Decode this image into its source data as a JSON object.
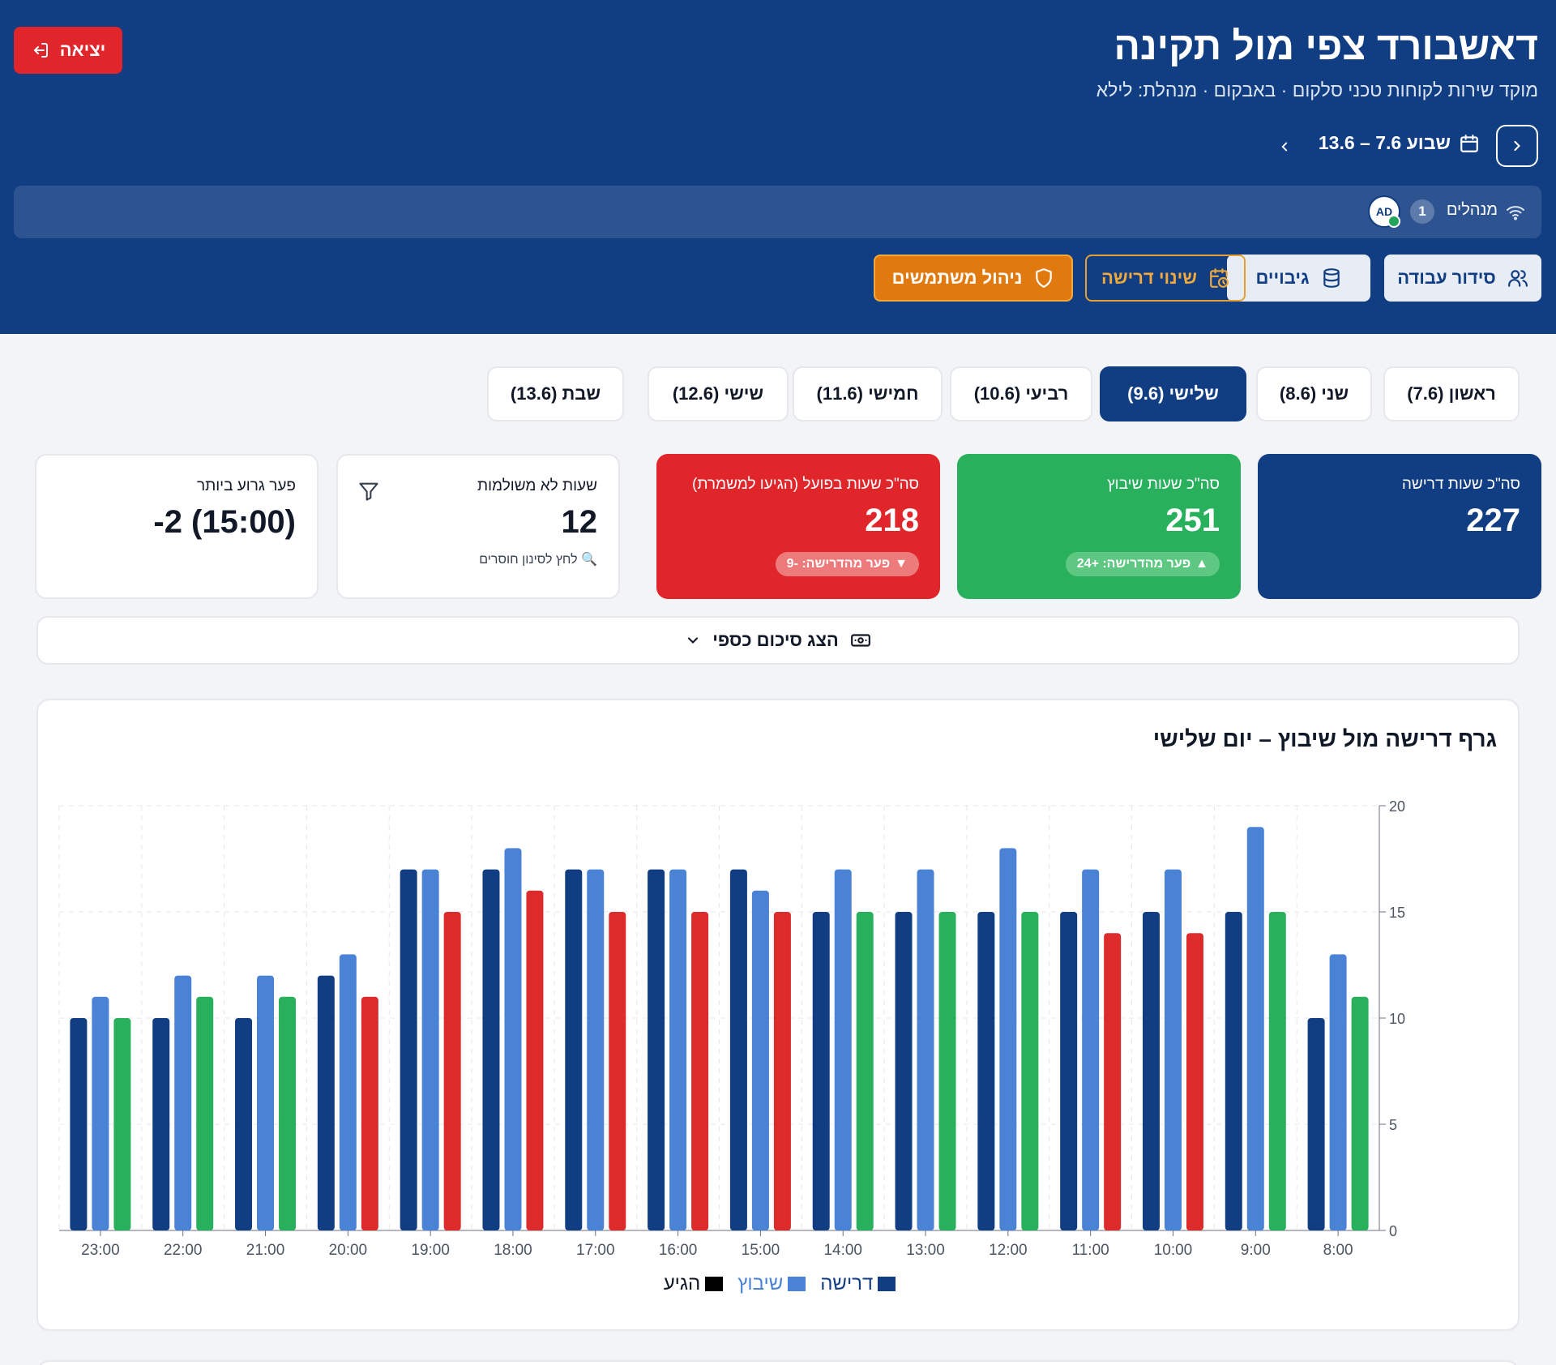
{
  "header": {
    "title": "דאשבורד צפי מול תקינה",
    "subtitle": "מוקד שירות לקוחות טכני סלקום · באבקום · מנהלת: לילא",
    "logout_label": "יציאה",
    "week_label": "שבוע 7.6 – 13.6",
    "presence": {
      "label": "מנהלים",
      "count": "1",
      "avatar_initials": "AD"
    },
    "nav": [
      {
        "label": "סידור עבודה",
        "icon": "users-icon"
      },
      {
        "label": "גיבויים",
        "icon": "database-icon"
      },
      {
        "label": "שינוי דרישה",
        "icon": "calendar-clock-icon"
      },
      {
        "label": "ניהול משתמשים",
        "icon": "shield-icon"
      }
    ]
  },
  "days": [
    {
      "label": "ראשון (7.6)",
      "active": false
    },
    {
      "label": "שני (8.6)",
      "active": false
    },
    {
      "label": "שלישי (9.6)",
      "active": true
    },
    {
      "label": "רביעי (10.6)",
      "active": false
    },
    {
      "label": "חמישי (11.6)",
      "active": false
    },
    {
      "label": "שישי (12.6)",
      "active": false
    },
    {
      "label": "שבת (13.6)",
      "active": false
    }
  ],
  "stats": {
    "demand": {
      "label": "סה\"כ שעות דרישה",
      "value": "227"
    },
    "scheduled": {
      "label": "סה\"כ שעות שיבוץ",
      "value": "251",
      "pill": "פער מהדרישה: +24"
    },
    "actual": {
      "label": "סה\"כ שעות בפועל (הגיעו למשמרת)",
      "value": "218",
      "pill": "פער מהדרישה: -9"
    },
    "unfilled": {
      "label": "שעות לא משולמות",
      "value": "12",
      "hint": "לחץ לסינון חוסרים"
    },
    "worst_gap": {
      "label": "פער גרוע ביותר",
      "value": "-2 (15:00)"
    }
  },
  "money_toggle_label": "הצג סיכום כספי",
  "chart_card": {
    "title": "גרף דרישה מול שיבוץ – יום שלישי"
  },
  "colors": {
    "demand": "#113e83",
    "scheduled": "#4a82d6",
    "arrived_ok": "#28b05d",
    "arrived_short": "#dd2a2a",
    "header_bg": "#113e83"
  },
  "chart_data": {
    "type": "bar",
    "title": "גרף דרישה מול שיבוץ – יום שלישי",
    "categories": [
      "8:00",
      "9:00",
      "10:00",
      "11:00",
      "12:00",
      "13:00",
      "14:00",
      "15:00",
      "16:00",
      "17:00",
      "18:00",
      "19:00",
      "20:00",
      "21:00",
      "22:00",
      "23:00"
    ],
    "series": [
      {
        "name": "דרישה",
        "values": [
          10,
          15,
          15,
          15,
          15,
          15,
          15,
          17,
          17,
          17,
          17,
          17,
          12,
          10,
          10,
          10
        ]
      },
      {
        "name": "שיבוץ",
        "values": [
          13,
          19,
          17,
          17,
          18,
          17,
          17,
          16,
          17,
          17,
          18,
          17,
          13,
          12,
          12,
          11
        ]
      },
      {
        "name": "הגיע",
        "values": [
          11,
          15,
          14,
          14,
          15,
          15,
          15,
          15,
          15,
          15,
          16,
          15,
          11,
          11,
          11,
          10
        ]
      }
    ],
    "y_ticks": [
      "0",
      "5",
      "10",
      "15",
      "20"
    ],
    "ylim": [
      0,
      20
    ],
    "x_axis_reversed": true,
    "y_axis_side": "right",
    "grid": true,
    "legend": "bottom-center",
    "legend_entries": [
      {
        "label": "דרישה",
        "color": "#113e83"
      },
      {
        "label": "שיבוץ",
        "color": "#4a82d6"
      },
      {
        "label": "הגיע",
        "color": "#000000"
      }
    ]
  }
}
